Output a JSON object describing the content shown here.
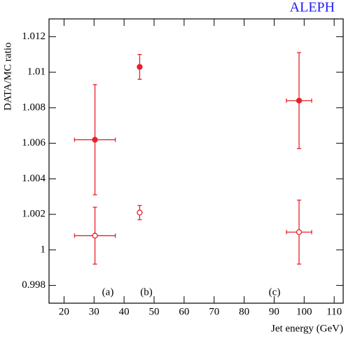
{
  "chart_data": {
    "type": "scatter",
    "title": "ALEPH",
    "xlabel": "Jet energy (GeV)",
    "ylabel": "DATA/MC ratio",
    "annotations": [
      "(a)",
      "(b)",
      "(c)"
    ],
    "xlim": [
      15,
      113
    ],
    "ylim": [
      0.997,
      1.013
    ],
    "xticks": [
      20,
      30,
      40,
      50,
      60,
      70,
      80,
      90,
      100,
      110
    ],
    "yticks": [
      0.998,
      1,
      1.002,
      1.004,
      1.006,
      1.008,
      1.01,
      1.012
    ],
    "series": [
      {
        "color": "#e8202a",
        "marker": "filled",
        "x": [
          30.3,
          45.2,
          98.3
        ],
        "xerr": [
          6.8,
          0.5,
          4.2
        ],
        "values": [
          1.0062,
          1.0103,
          1.0084
        ],
        "yerr": [
          0.0031,
          0.0007,
          0.0027
        ]
      },
      {
        "color": "#e8202a",
        "marker": "open",
        "x": [
          30.3,
          45.2,
          98.3
        ],
        "xerr": [
          6.8,
          0.5,
          4.2
        ],
        "values": [
          1.0008,
          1.0021,
          1.001
        ],
        "yerr": [
          0.0016,
          0.0004,
          0.0018
        ]
      }
    ]
  }
}
